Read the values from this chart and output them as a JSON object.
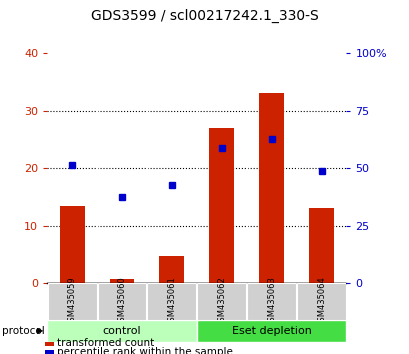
{
  "title": "GDS3599 / scl00217242.1_330-S",
  "samples": [
    "GSM435059",
    "GSM435060",
    "GSM435061",
    "GSM435062",
    "GSM435063",
    "GSM435064"
  ],
  "transformed_counts": [
    13.5,
    0.8,
    4.8,
    27.0,
    33.0,
    13.0
  ],
  "percentile_ranks": [
    20.5,
    15.0,
    17.0,
    23.5,
    25.0,
    19.5
  ],
  "left_ylim": [
    0,
    40
  ],
  "right_ylim": [
    0,
    100
  ],
  "left_yticks": [
    0,
    10,
    20,
    30,
    40
  ],
  "right_yticks": [
    0,
    25,
    50,
    75,
    100
  ],
  "right_yticklabels": [
    "0",
    "25",
    "50",
    "75",
    "100%"
  ],
  "bar_color": "#cc2200",
  "dot_color": "#0000cc",
  "bar_width": 0.5,
  "groups": [
    {
      "label": "control",
      "indices": [
        0,
        1,
        2
      ],
      "color": "#bbffbb"
    },
    {
      "label": "Eset depletion",
      "indices": [
        3,
        4,
        5
      ],
      "color": "#44dd44"
    }
  ],
  "protocol_label": "protocol",
  "legend_items": [
    {
      "label": "transformed count",
      "color": "#cc2200"
    },
    {
      "label": "percentile rank within the sample",
      "color": "#0000cc"
    }
  ],
  "background_color": "#ffffff",
  "plot_bg_color": "#ffffff",
  "title_fontsize": 10,
  "tick_fontsize": 8,
  "sample_fontsize": 6,
  "group_fontsize": 8,
  "legend_fontsize": 7.5
}
